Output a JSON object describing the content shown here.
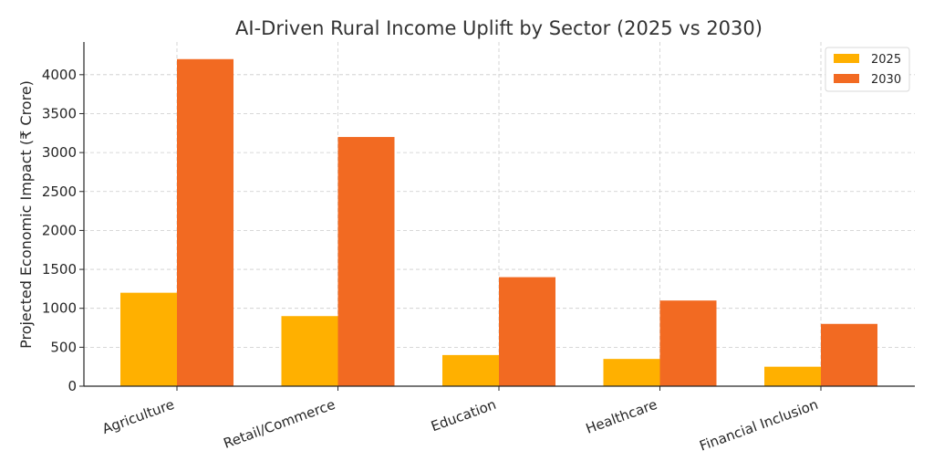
{
  "chart_data": {
    "type": "bar",
    "title": "AI-Driven Rural Income Uplift by Sector (2025 vs 2030)",
    "xlabel": "",
    "ylabel": "Projected Economic Impact (₹ Crore)",
    "categories": [
      "Agriculture",
      "Retail/Commerce",
      "Education",
      "Healthcare",
      "Financial Inclusion"
    ],
    "series": [
      {
        "name": "2025",
        "values": [
          1200,
          900,
          400,
          350,
          250
        ],
        "color": "#FFB000"
      },
      {
        "name": "2030",
        "values": [
          4200,
          3200,
          1400,
          1100,
          800
        ],
        "color": "#F26A22"
      }
    ],
    "ylim": [
      0,
      4420
    ],
    "yticks": [
      0,
      500,
      1000,
      1500,
      2000,
      2500,
      3000,
      3500,
      4000
    ],
    "grid": true,
    "legend_position": "top-right"
  }
}
